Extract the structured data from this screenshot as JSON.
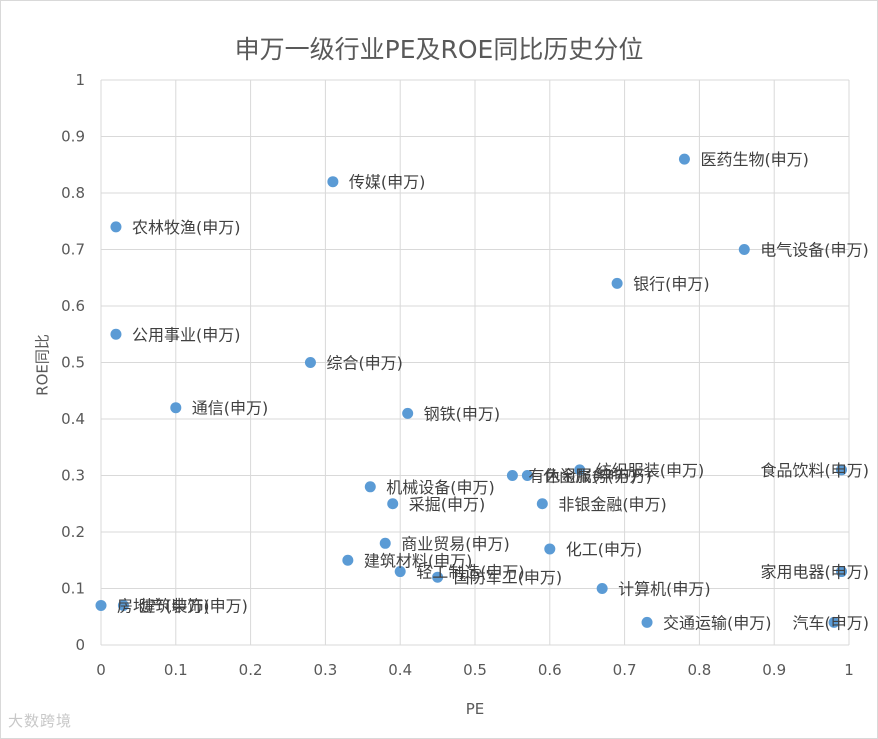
{
  "chart_data": {
    "type": "scatter",
    "title": "申万一级行业PE及ROE同比历史分位",
    "xlabel": "PE",
    "ylabel": "ROE同比",
    "xlim": [
      0,
      1
    ],
    "ylim": [
      0,
      1
    ],
    "xticks": [
      "0",
      "0.1",
      "0.2",
      "0.3",
      "0.4",
      "0.5",
      "0.6",
      "0.7",
      "0.8",
      "0.9",
      "1"
    ],
    "yticks": [
      "0",
      "0.1",
      "0.2",
      "0.3",
      "0.4",
      "0.5",
      "0.6",
      "0.7",
      "0.8",
      "0.9",
      "1"
    ],
    "grid": true,
    "marker_color": "#5b9bd5",
    "points": [
      {
        "label": "医药生物(申万)",
        "x": 0.78,
        "y": 0.86
      },
      {
        "label": "传媒(申万)",
        "x": 0.31,
        "y": 0.82
      },
      {
        "label": "农林牧渔(申万)",
        "x": 0.02,
        "y": 0.74
      },
      {
        "label": "电气设备(申万)",
        "x": 0.86,
        "y": 0.7
      },
      {
        "label": "银行(申万)",
        "x": 0.69,
        "y": 0.64
      },
      {
        "label": "公用事业(申万)",
        "x": 0.02,
        "y": 0.55
      },
      {
        "label": "综合(申万)",
        "x": 0.28,
        "y": 0.5
      },
      {
        "label": "通信(申万)",
        "x": 0.1,
        "y": 0.42
      },
      {
        "label": "钢铁(申万)",
        "x": 0.41,
        "y": 0.41
      },
      {
        "label": "纺织服装(申万)",
        "x": 0.64,
        "y": 0.31
      },
      {
        "label": "食品饮料(申万)",
        "x": 0.99,
        "y": 0.31
      },
      {
        "label": "有色金属(申万)",
        "x": 0.55,
        "y": 0.3
      },
      {
        "label": "休闲服务(申万)",
        "x": 0.57,
        "y": 0.3
      },
      {
        "label": "机械设备(申万)",
        "x": 0.36,
        "y": 0.28
      },
      {
        "label": "采掘(申万)",
        "x": 0.39,
        "y": 0.25
      },
      {
        "label": "非银金融(申万)",
        "x": 0.59,
        "y": 0.25
      },
      {
        "label": "商业贸易(申万)",
        "x": 0.38,
        "y": 0.18
      },
      {
        "label": "化工(申万)",
        "x": 0.6,
        "y": 0.17
      },
      {
        "label": "建筑材料(申万)",
        "x": 0.33,
        "y": 0.15
      },
      {
        "label": "轻工制造(申万)",
        "x": 0.4,
        "y": 0.13
      },
      {
        "label": "国防军工(申万)",
        "x": 0.45,
        "y": 0.12
      },
      {
        "label": "家用电器(申万)",
        "x": 0.99,
        "y": 0.13
      },
      {
        "label": "计算机(申万)",
        "x": 0.67,
        "y": 0.1
      },
      {
        "label": "房地产(申万)",
        "x": 0.0,
        "y": 0.07
      },
      {
        "label": "建筑装饰(申万)",
        "x": 0.03,
        "y": 0.07
      },
      {
        "label": "交通运输(申万)",
        "x": 0.73,
        "y": 0.04
      },
      {
        "label": "汽车(申万)",
        "x": 0.98,
        "y": 0.04
      }
    ]
  },
  "watermark": "大数跨境"
}
